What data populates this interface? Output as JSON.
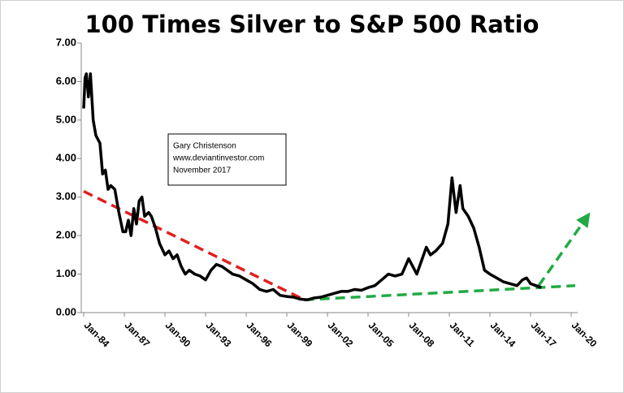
{
  "chart_data": {
    "type": "line",
    "title": "100 Times Silver to S&P 500  Ratio",
    "annotation": [
      "Gary Christenson",
      "www.deviantinvestor.com",
      "November 2017"
    ],
    "xlim": [
      1984,
      2020
    ],
    "ylim": [
      0,
      7
    ],
    "yticks": [
      {
        "value": 0,
        "label": "0.00"
      },
      {
        "value": 1,
        "label": "1.00"
      },
      {
        "value": 2,
        "label": "2.00"
      },
      {
        "value": 3,
        "label": "3.00"
      },
      {
        "value": 4,
        "label": "4.00"
      },
      {
        "value": 5,
        "label": "5.00"
      },
      {
        "value": 6,
        "label": "6.00"
      },
      {
        "value": 7,
        "label": "7.00"
      }
    ],
    "xticks": [
      {
        "value": 1984,
        "label": "Jan-84"
      },
      {
        "value": 1987,
        "label": "Jan-87"
      },
      {
        "value": 1990,
        "label": "Jan-90"
      },
      {
        "value": 1993,
        "label": "Jan-93"
      },
      {
        "value": 1996,
        "label": "Jan-96"
      },
      {
        "value": 1999,
        "label": "Jan-99"
      },
      {
        "value": 2002,
        "label": "Jan-02"
      },
      {
        "value": 2005,
        "label": "Jan-05"
      },
      {
        "value": 2008,
        "label": "Jan-08"
      },
      {
        "value": 2011,
        "label": "Jan-11"
      },
      {
        "value": 2014,
        "label": "Jan-14"
      },
      {
        "value": 2017,
        "label": "Jan-17"
      },
      {
        "value": 2020,
        "label": "Jan-20"
      }
    ],
    "series": [
      {
        "color": "#000000",
        "x": [
          1984.0,
          1984.1,
          1984.2,
          1984.35,
          1984.5,
          1984.7,
          1984.9,
          1985.2,
          1985.4,
          1985.6,
          1985.8,
          1986.0,
          1986.3,
          1986.6,
          1986.9,
          1987.1,
          1987.3,
          1987.5,
          1987.7,
          1987.9,
          1988.1,
          1988.3,
          1988.5,
          1988.8,
          1989.0,
          1989.3,
          1989.6,
          1990.0,
          1990.3,
          1990.6,
          1990.9,
          1991.2,
          1991.5,
          1991.8,
          1992.2,
          1992.6,
          1993.0,
          1993.4,
          1993.8,
          1994.2,
          1994.6,
          1995.0,
          1995.5,
          1996.0,
          1996.5,
          1997.0,
          1997.5,
          1998.0,
          1998.5,
          1999.0,
          1999.5,
          2000.0,
          2000.5,
          2001.0,
          2001.5,
          2002.0,
          2002.5,
          2003.0,
          2003.5,
          2004.0,
          2004.5,
          2005.0,
          2005.5,
          2006.0,
          2006.5,
          2007.0,
          2007.5,
          2008.0,
          2008.3,
          2008.6,
          2009.0,
          2009.3,
          2009.6,
          2010.0,
          2010.5,
          2010.9,
          2011.2,
          2011.5,
          2011.8,
          2012.0,
          2012.4,
          2012.8,
          2013.2,
          2013.6,
          2014.0,
          2014.5,
          2015.0,
          2015.5,
          2016.0,
          2016.4,
          2016.7,
          2017.0,
          2017.4,
          2017.8
        ],
        "values": [
          5.3,
          6.1,
          6.2,
          5.6,
          6.2,
          5.0,
          4.6,
          4.4,
          3.6,
          3.7,
          3.2,
          3.3,
          3.2,
          2.6,
          2.1,
          2.1,
          2.4,
          2.0,
          2.7,
          2.3,
          2.9,
          3.0,
          2.5,
          2.6,
          2.5,
          2.2,
          1.8,
          1.5,
          1.6,
          1.4,
          1.5,
          1.2,
          1.0,
          1.1,
          1.0,
          0.95,
          0.85,
          1.1,
          1.25,
          1.2,
          1.1,
          1.0,
          0.95,
          0.85,
          0.75,
          0.6,
          0.55,
          0.6,
          0.45,
          0.42,
          0.4,
          0.35,
          0.33,
          0.38,
          0.4,
          0.45,
          0.5,
          0.55,
          0.55,
          0.6,
          0.58,
          0.65,
          0.7,
          0.85,
          1.0,
          0.95,
          1.0,
          1.4,
          1.2,
          1.0,
          1.4,
          1.7,
          1.5,
          1.6,
          1.8,
          2.3,
          3.5,
          2.6,
          3.3,
          2.7,
          2.5,
          2.2,
          1.7,
          1.1,
          1.0,
          0.9,
          0.8,
          0.75,
          0.7,
          0.85,
          0.9,
          0.75,
          0.7,
          0.65
        ]
      }
    ],
    "trendlines": [
      {
        "color": "#e02020",
        "x": [
          1984,
          2000.3
        ],
        "values": [
          3.15,
          0.33
        ]
      },
      {
        "color": "#22aa44",
        "x": [
          2000.3,
          2020.3
        ],
        "values": [
          0.33,
          0.7
        ]
      },
      {
        "color": "#22aa44",
        "arrow": true,
        "x": [
          2017.6,
          2021.1
        ],
        "values": [
          0.7,
          2.45
        ]
      }
    ]
  }
}
